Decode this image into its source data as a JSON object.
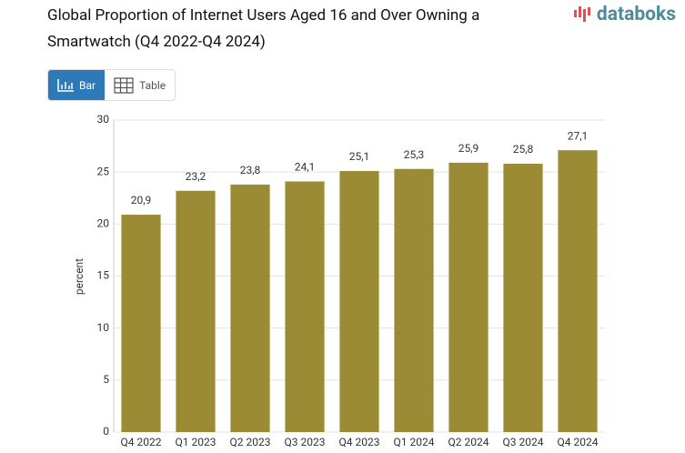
{
  "logo": "databoks",
  "controls": [
    "Bar",
    "Table"
  ],
  "chart_data": {
    "type": "bar",
    "title": "Global Proportion of Internet Users Aged 16 and Over Owning a Smartwatch (Q4 2022-Q4 2024)",
    "y_label": "percent",
    "categories": [
      "Q4 2022",
      "Q1 2023",
      "Q2 2023",
      "Q3 2023",
      "Q4 2023",
      "Q1 2024",
      "Q2 2024",
      "Q3 2024",
      "Q4 2024"
    ],
    "values": [
      20.9,
      23.2,
      23.8,
      24.1,
      25.1,
      25.3,
      25.9,
      25.8,
      27.1
    ],
    "value_labels": [
      "20,9",
      "23,2",
      "23,8",
      "24,1",
      "25,1",
      "25,3",
      "25,9",
      "25,8",
      "27,1"
    ],
    "color": "#9b8b35",
    "ylim": [
      0,
      30
    ],
    "yticks": [
      0,
      5,
      10,
      15,
      20,
      25,
      30
    ],
    "grid": true
  }
}
